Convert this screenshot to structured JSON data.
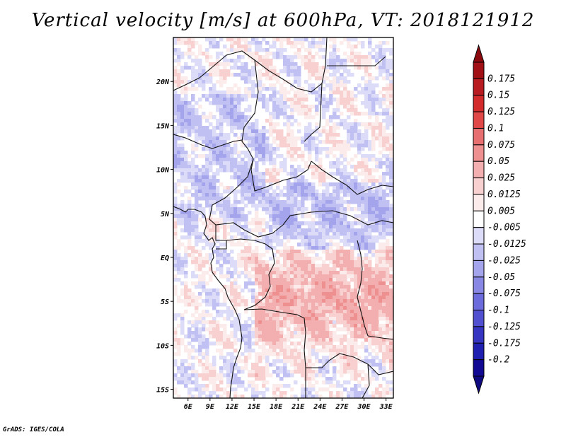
{
  "title": "Vertical velocity [m/s] at 600hPa, VT: 2018121912",
  "credit": "GrADS: IGES/COLA",
  "map": {
    "region": "Central Africa",
    "lon_range": [
      4,
      34
    ],
    "lat_range": [
      -16,
      25
    ],
    "lon_ticks": [
      {
        "value": 6,
        "label": "6E"
      },
      {
        "value": 9,
        "label": "9E"
      },
      {
        "value": 12,
        "label": "12E"
      },
      {
        "value": 15,
        "label": "15E"
      },
      {
        "value": 18,
        "label": "18E"
      },
      {
        "value": 21,
        "label": "21E"
      },
      {
        "value": 24,
        "label": "24E"
      },
      {
        "value": 27,
        "label": "27E"
      },
      {
        "value": 30,
        "label": "30E"
      },
      {
        "value": 33,
        "label": "33E"
      }
    ],
    "lat_ticks": [
      {
        "value": 20,
        "label": "20N"
      },
      {
        "value": 15,
        "label": "15N"
      },
      {
        "value": 10,
        "label": "10N"
      },
      {
        "value": 5,
        "label": "5N"
      },
      {
        "value": 0,
        "label": "EQ"
      },
      {
        "value": -5,
        "label": "5S"
      },
      {
        "value": -10,
        "label": "10S"
      },
      {
        "value": -15,
        "label": "15S"
      }
    ]
  },
  "colorbar": {
    "labels": [
      "0.175",
      "0.15",
      "0.125",
      "0.1",
      "0.075",
      "0.05",
      "0.025",
      "0.0125",
      "0.005",
      "-0.005",
      "-0.0125",
      "-0.025",
      "-0.05",
      "-0.075",
      "-0.1",
      "-0.125",
      "-0.175",
      "-0.2"
    ],
    "colors": [
      "#a01015",
      "#b81c20",
      "#d32a2c",
      "#e04848",
      "#e86f6f",
      "#ee9090",
      "#f3afaf",
      "#f8d0d0",
      "#fcebeb",
      "#ffffff",
      "#dcdcf8",
      "#c0c0f3",
      "#a4a4ec",
      "#8888e4",
      "#6c6cdc",
      "#5050d0",
      "#3535c2",
      "#2020b0",
      "#120a92"
    ],
    "top_arrow_color": "#8b0a0f",
    "bottom_arrow_color": "#100a80"
  }
}
